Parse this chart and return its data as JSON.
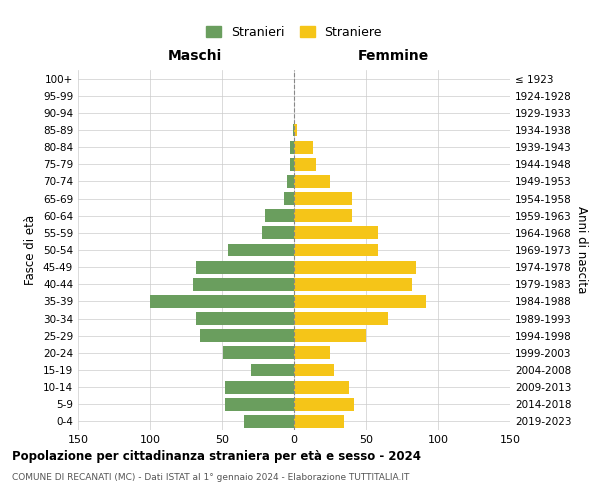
{
  "age_groups": [
    "0-4",
    "5-9",
    "10-14",
    "15-19",
    "20-24",
    "25-29",
    "30-34",
    "35-39",
    "40-44",
    "45-49",
    "50-54",
    "55-59",
    "60-64",
    "65-69",
    "70-74",
    "75-79",
    "80-84",
    "85-89",
    "90-94",
    "95-99",
    "100+"
  ],
  "birth_years": [
    "2019-2023",
    "2014-2018",
    "2009-2013",
    "2004-2008",
    "1999-2003",
    "1994-1998",
    "1989-1993",
    "1984-1988",
    "1979-1983",
    "1974-1978",
    "1969-1973",
    "1964-1968",
    "1959-1963",
    "1954-1958",
    "1949-1953",
    "1944-1948",
    "1939-1943",
    "1934-1938",
    "1929-1933",
    "1924-1928",
    "≤ 1923"
  ],
  "males": [
    35,
    48,
    48,
    30,
    49,
    65,
    68,
    100,
    70,
    68,
    46,
    22,
    20,
    7,
    5,
    3,
    3,
    1,
    0,
    0,
    0
  ],
  "females": [
    35,
    42,
    38,
    28,
    25,
    50,
    65,
    92,
    82,
    85,
    58,
    58,
    40,
    40,
    25,
    15,
    13,
    2,
    0,
    0,
    0
  ],
  "male_color": "#6a9e5e",
  "female_color": "#f5c518",
  "grid_color": "#cccccc",
  "zero_line_color": "#888888",
  "title": "Popolazione per cittadinanza straniera per età e sesso - 2024",
  "subtitle": "COMUNE DI RECANATI (MC) - Dati ISTAT al 1° gennaio 2024 - Elaborazione TUTTITALIA.IT",
  "xlabel_left": "Maschi",
  "xlabel_right": "Femmine",
  "ylabel_left": "Fasce di età",
  "ylabel_right": "Anni di nascita",
  "legend_stranieri": "Stranieri",
  "legend_straniere": "Straniere",
  "xlim": 150,
  "background_color": "#ffffff"
}
